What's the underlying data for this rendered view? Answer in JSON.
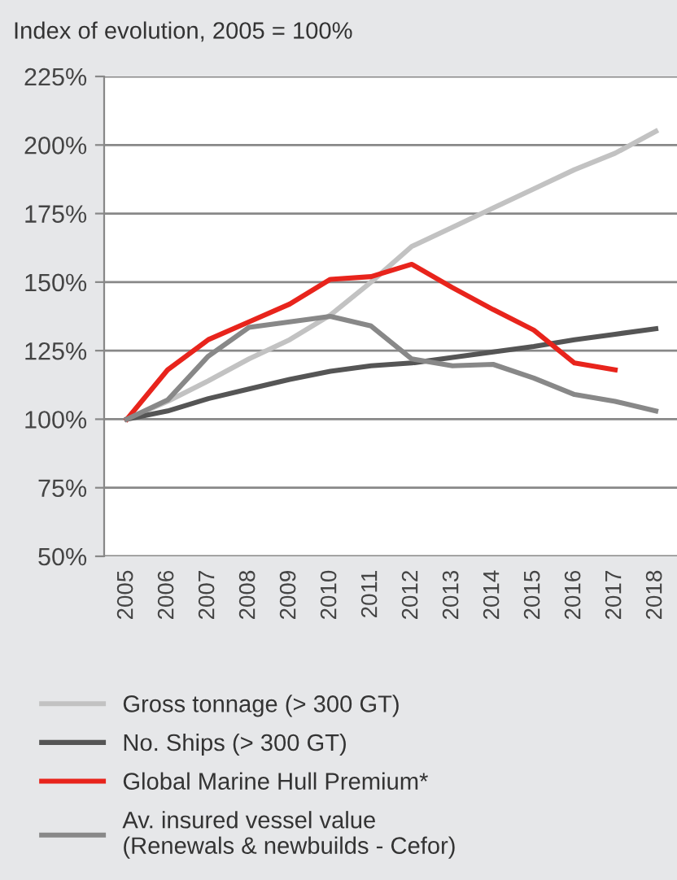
{
  "chart_data": {
    "type": "line",
    "title": "Index of evolution, 2005 = 100%",
    "categories": [
      "2005",
      "2006",
      "2007",
      "2008",
      "2009",
      "2010",
      "2011",
      "2012",
      "2013",
      "2014",
      "2015",
      "2016",
      "2017",
      "2018"
    ],
    "series": [
      {
        "name": "Gross tonnage (> 300 GT)",
        "color": "#c2c2c2",
        "values": [
          100,
          106.5,
          114,
          122,
          129,
          138,
          150,
          163,
          170,
          177,
          184,
          191,
          197,
          205
        ]
      },
      {
        "name": "No. Ships (> 300 GT)",
        "color": "#555555",
        "values": [
          100,
          103,
          107.5,
          111,
          114.5,
          117.5,
          119.5,
          120.5,
          122.5,
          124.5,
          126.5,
          129,
          131,
          133
        ]
      },
      {
        "name": "Global Marine Hull Premium*",
        "color": "#e8241c",
        "values": [
          100,
          118,
          129,
          135.5,
          142,
          151,
          152,
          156.5,
          148,
          140,
          132.5,
          120.5,
          118,
          null
        ]
      },
      {
        "name": "Av. insured vessel value\n(Renewals & newbuilds - Cefor)",
        "color": "#888888",
        "values": [
          100,
          107,
          123,
          133.5,
          135.5,
          137.5,
          134,
          122,
          119.5,
          120,
          115,
          109,
          106.5,
          103
        ]
      }
    ],
    "ylim": [
      50,
      225
    ],
    "yticks": [
      {
        "value": 50,
        "label": "50%"
      },
      {
        "value": 75,
        "label": "75%"
      },
      {
        "value": 100,
        "label": "100%"
      },
      {
        "value": 125,
        "label": "125%"
      },
      {
        "value": 150,
        "label": "150%"
      },
      {
        "value": 175,
        "label": "175%"
      },
      {
        "value": 200,
        "label": "200%"
      },
      {
        "value": 225,
        "label": "225%"
      }
    ],
    "grid": "y",
    "legend": "bottom",
    "marker": "none",
    "line_style": "solid"
  }
}
